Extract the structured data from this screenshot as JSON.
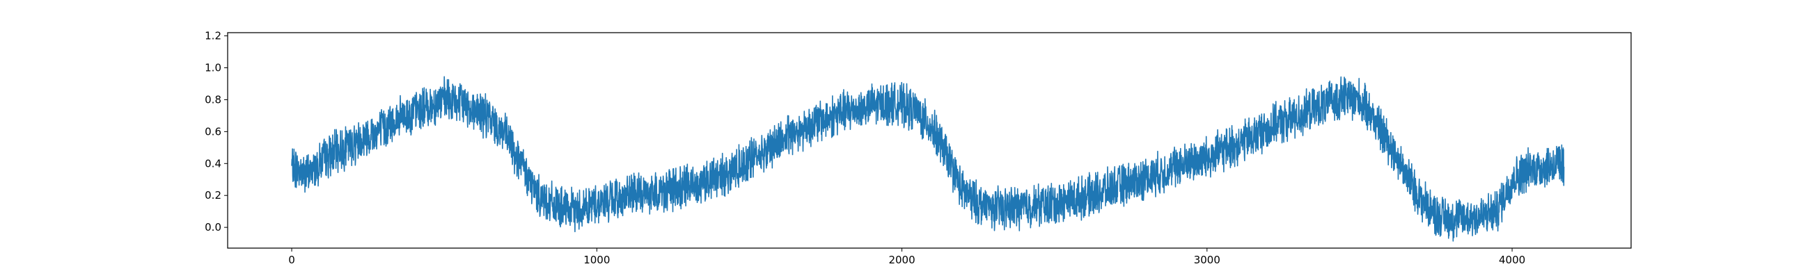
{
  "chart_data": {
    "type": "line",
    "title": "",
    "xlabel": "",
    "ylabel": "",
    "xlim": [
      -210,
      4390
    ],
    "ylim": [
      -0.13,
      1.22
    ],
    "xticks": [
      0,
      1000,
      2000,
      3000,
      4000
    ],
    "yticks": [
      0.0,
      0.2,
      0.4,
      0.6,
      0.8,
      1.0,
      1.2
    ],
    "xtick_labels": [
      "0",
      "1000",
      "2000",
      "3000",
      "4000"
    ],
    "ytick_labels": [
      "0.0",
      "0.2",
      "0.4",
      "0.6",
      "0.8",
      "1.0",
      "1.2"
    ],
    "grid": false,
    "series": [
      {
        "color": "#1f77b4",
        "x": [
          0,
          50,
          100,
          150,
          200,
          250,
          300,
          350,
          400,
          450,
          500,
          550,
          600,
          650,
          700,
          750,
          800,
          850,
          900,
          950,
          1000,
          1050,
          1100,
          1150,
          1200,
          1250,
          1300,
          1350,
          1400,
          1450,
          1500,
          1550,
          1600,
          1650,
          1700,
          1750,
          1800,
          1850,
          1900,
          1950,
          2000,
          2050,
          2100,
          2150,
          2200,
          2250,
          2300,
          2350,
          2400,
          2450,
          2500,
          2550,
          2600,
          2650,
          2700,
          2750,
          2800,
          2850,
          2900,
          2950,
          3000,
          3050,
          3100,
          3150,
          3200,
          3250,
          3300,
          3350,
          3400,
          3450,
          3500,
          3550,
          3600,
          3650,
          3700,
          3750,
          3800,
          3850,
          3900,
          3950,
          4000,
          4050,
          4100,
          4150,
          4170
        ],
        "y": [
          0.38,
          0.33,
          0.42,
          0.48,
          0.52,
          0.58,
          0.62,
          0.68,
          0.72,
          0.76,
          0.8,
          0.78,
          0.74,
          0.68,
          0.58,
          0.4,
          0.22,
          0.15,
          0.1,
          0.12,
          0.15,
          0.17,
          0.2,
          0.21,
          0.22,
          0.24,
          0.26,
          0.29,
          0.32,
          0.36,
          0.42,
          0.48,
          0.54,
          0.6,
          0.64,
          0.68,
          0.72,
          0.74,
          0.76,
          0.78,
          0.77,
          0.72,
          0.62,
          0.44,
          0.22,
          0.15,
          0.12,
          0.12,
          0.13,
          0.14,
          0.15,
          0.17,
          0.19,
          0.22,
          0.25,
          0.28,
          0.31,
          0.34,
          0.38,
          0.41,
          0.44,
          0.48,
          0.52,
          0.57,
          0.62,
          0.66,
          0.7,
          0.74,
          0.78,
          0.82,
          0.8,
          0.68,
          0.52,
          0.34,
          0.18,
          0.08,
          0.05,
          0.06,
          0.07,
          0.1,
          0.3,
          0.36,
          0.38,
          0.4,
          0.38
        ]
      }
    ]
  }
}
